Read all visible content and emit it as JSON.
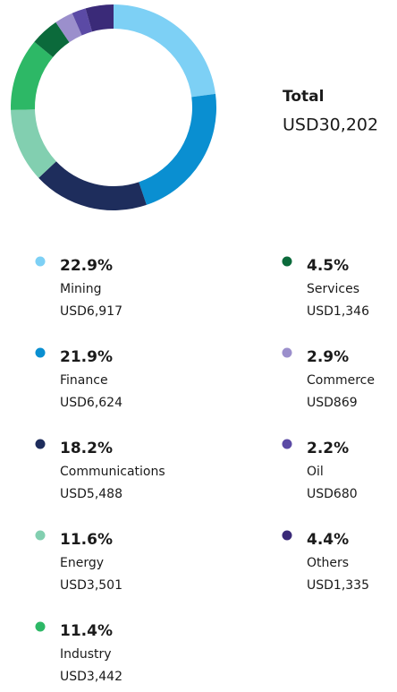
{
  "chart_data": {
    "type": "pie",
    "total_label": "Total",
    "total_value_label": "USD30,202",
    "categories": [
      "Mining",
      "Finance",
      "Communications",
      "Energy",
      "Industry",
      "Services",
      "Commerce",
      "Oil",
      "Others"
    ],
    "values": [
      22.9,
      21.9,
      18.2,
      11.6,
      11.4,
      4.5,
      2.9,
      2.2,
      4.4
    ],
    "value_labels": [
      "22.9%",
      "21.9%",
      "18.2%",
      "11.6%",
      "11.4%",
      "4.5%",
      "2.9%",
      "2.2%",
      "4.4%"
    ],
    "amount_labels": [
      "USD6,917",
      "USD6,624",
      "USD5,488",
      "USD3,501",
      "USD3,442",
      "USD1,346",
      "USD869",
      "USD680",
      "USD1,335"
    ],
    "colors": [
      "#7dd0f5",
      "#0a8fd1",
      "#1e2d5c",
      "#82cfb0",
      "#2db866",
      "#0b6a3b",
      "#9b8fcc",
      "#5b4aa5",
      "#3a2a78"
    ]
  }
}
